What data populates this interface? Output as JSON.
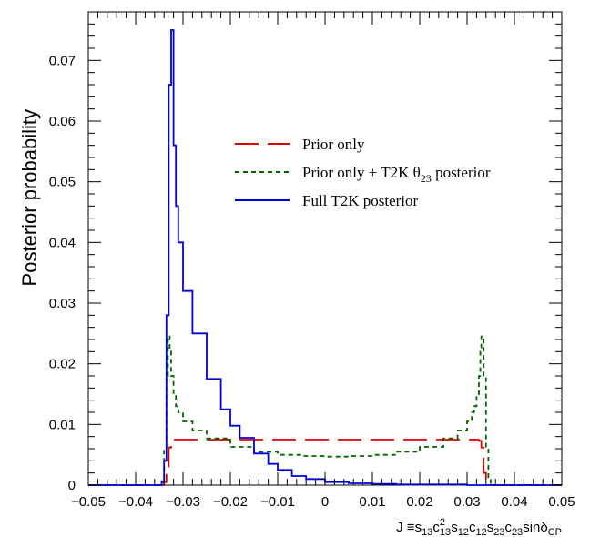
{
  "chart_data": {
    "type": "line",
    "title": "",
    "xlabel": "J ≡ s13 c13^2 s12 c12 s23 c23 sinδCP",
    "xlabel_parts": {
      "prefix": "J ≡",
      "s13": "s",
      "s13_sub": "13",
      "c13": "c",
      "c13_sub": "13",
      "c13_sup": "2",
      "s12": "s",
      "s12_sub": "12",
      "c12": "c",
      "c12_sub": "12",
      "s23": "s",
      "s23_sub": "23",
      "c23": "c",
      "c23_sub": "23",
      "sin": "sinδ",
      "cp_sub": "CP"
    },
    "ylabel": "Posterior probability",
    "xlim": [
      -0.05,
      0.05
    ],
    "ylim": [
      0,
      0.078
    ],
    "xticks": [
      -0.05,
      -0.04,
      -0.03,
      -0.02,
      -0.01,
      0,
      0.01,
      0.02,
      0.03,
      0.04,
      0.05
    ],
    "xtick_labels": [
      "−0.05",
      "−0.04",
      "−0.03",
      "−0.02",
      "−0.01",
      "0",
      "0.01",
      "0.02",
      "0.03",
      "0.04",
      "0.05"
    ],
    "yticks": [
      0,
      0.01,
      0.02,
      0.03,
      0.04,
      0.05,
      0.06,
      0.07
    ],
    "ytick_labels": [
      "0",
      "0.01",
      "0.02",
      "0.03",
      "0.04",
      "0.05",
      "0.06",
      "0.07"
    ],
    "grid": false,
    "legend_position": "upper-right",
    "series": [
      {
        "name": "Prior only",
        "color": "#e00000",
        "style": "long-dash",
        "x": [
          -0.05,
          -0.0345,
          -0.034,
          -0.0335,
          -0.033,
          -0.0325,
          -0.032,
          -0.03,
          -0.02,
          -0.01,
          0.0,
          0.01,
          0.02,
          0.03,
          0.032,
          0.0325,
          0.033,
          0.0335,
          0.034,
          0.0345,
          0.05
        ],
        "y": [
          0,
          0,
          0.0005,
          0.002,
          0.0062,
          0.0073,
          0.0075,
          0.0075,
          0.0075,
          0.0075,
          0.0075,
          0.0075,
          0.0075,
          0.0075,
          0.0075,
          0.0073,
          0.0062,
          0.002,
          0.0005,
          0,
          0
        ]
      },
      {
        "name": "Prior only + T2K  θ23 posterior",
        "legend_parts": {
          "main": "Prior only + T2K  θ",
          "sub": "23",
          "tail": " posterior"
        },
        "color": "#006600",
        "style": "short-dash",
        "x": [
          -0.05,
          -0.035,
          -0.0345,
          -0.034,
          -0.0335,
          -0.0332,
          -0.033,
          -0.0328,
          -0.0325,
          -0.032,
          -0.0315,
          -0.031,
          -0.03,
          -0.028,
          -0.025,
          -0.02,
          -0.015,
          -0.01,
          -0.005,
          0.0,
          0.005,
          0.01,
          0.015,
          0.02,
          0.025,
          0.028,
          0.03,
          0.031,
          0.0315,
          0.032,
          0.0325,
          0.0328,
          0.033,
          0.0332,
          0.0335,
          0.034,
          0.0345,
          0.035,
          0.05
        ],
        "y": [
          0,
          0,
          0.001,
          0.006,
          0.018,
          0.024,
          0.0245,
          0.0225,
          0.018,
          0.015,
          0.013,
          0.012,
          0.0105,
          0.009,
          0.0077,
          0.0063,
          0.0055,
          0.005,
          0.0048,
          0.0047,
          0.0048,
          0.005,
          0.0055,
          0.0063,
          0.0077,
          0.009,
          0.0105,
          0.012,
          0.013,
          0.015,
          0.018,
          0.0225,
          0.0245,
          0.024,
          0.018,
          0.006,
          0.001,
          0,
          0
        ]
      },
      {
        "name": "Full T2K posterior",
        "color": "#0000dd",
        "style": "solid",
        "x": [
          -0.05,
          -0.035,
          -0.0345,
          -0.034,
          -0.0335,
          -0.033,
          -0.0325,
          -0.032,
          -0.0315,
          -0.031,
          -0.03,
          -0.028,
          -0.025,
          -0.022,
          -0.02,
          -0.018,
          -0.015,
          -0.012,
          -0.01,
          -0.007,
          -0.004,
          0.0,
          0.005,
          0.01,
          0.015,
          0.02,
          0.03,
          0.04,
          0.05
        ],
        "y": [
          0,
          0,
          0.0005,
          0.004,
          0.028,
          0.066,
          0.075,
          0.056,
          0.046,
          0.04,
          0.032,
          0.025,
          0.0175,
          0.0125,
          0.0098,
          0.0078,
          0.0052,
          0.0035,
          0.0025,
          0.0015,
          0.001,
          0.0005,
          0.0003,
          0.0002,
          0.0001,
          0.0001,
          0.0,
          0.0,
          0.0
        ]
      }
    ]
  }
}
